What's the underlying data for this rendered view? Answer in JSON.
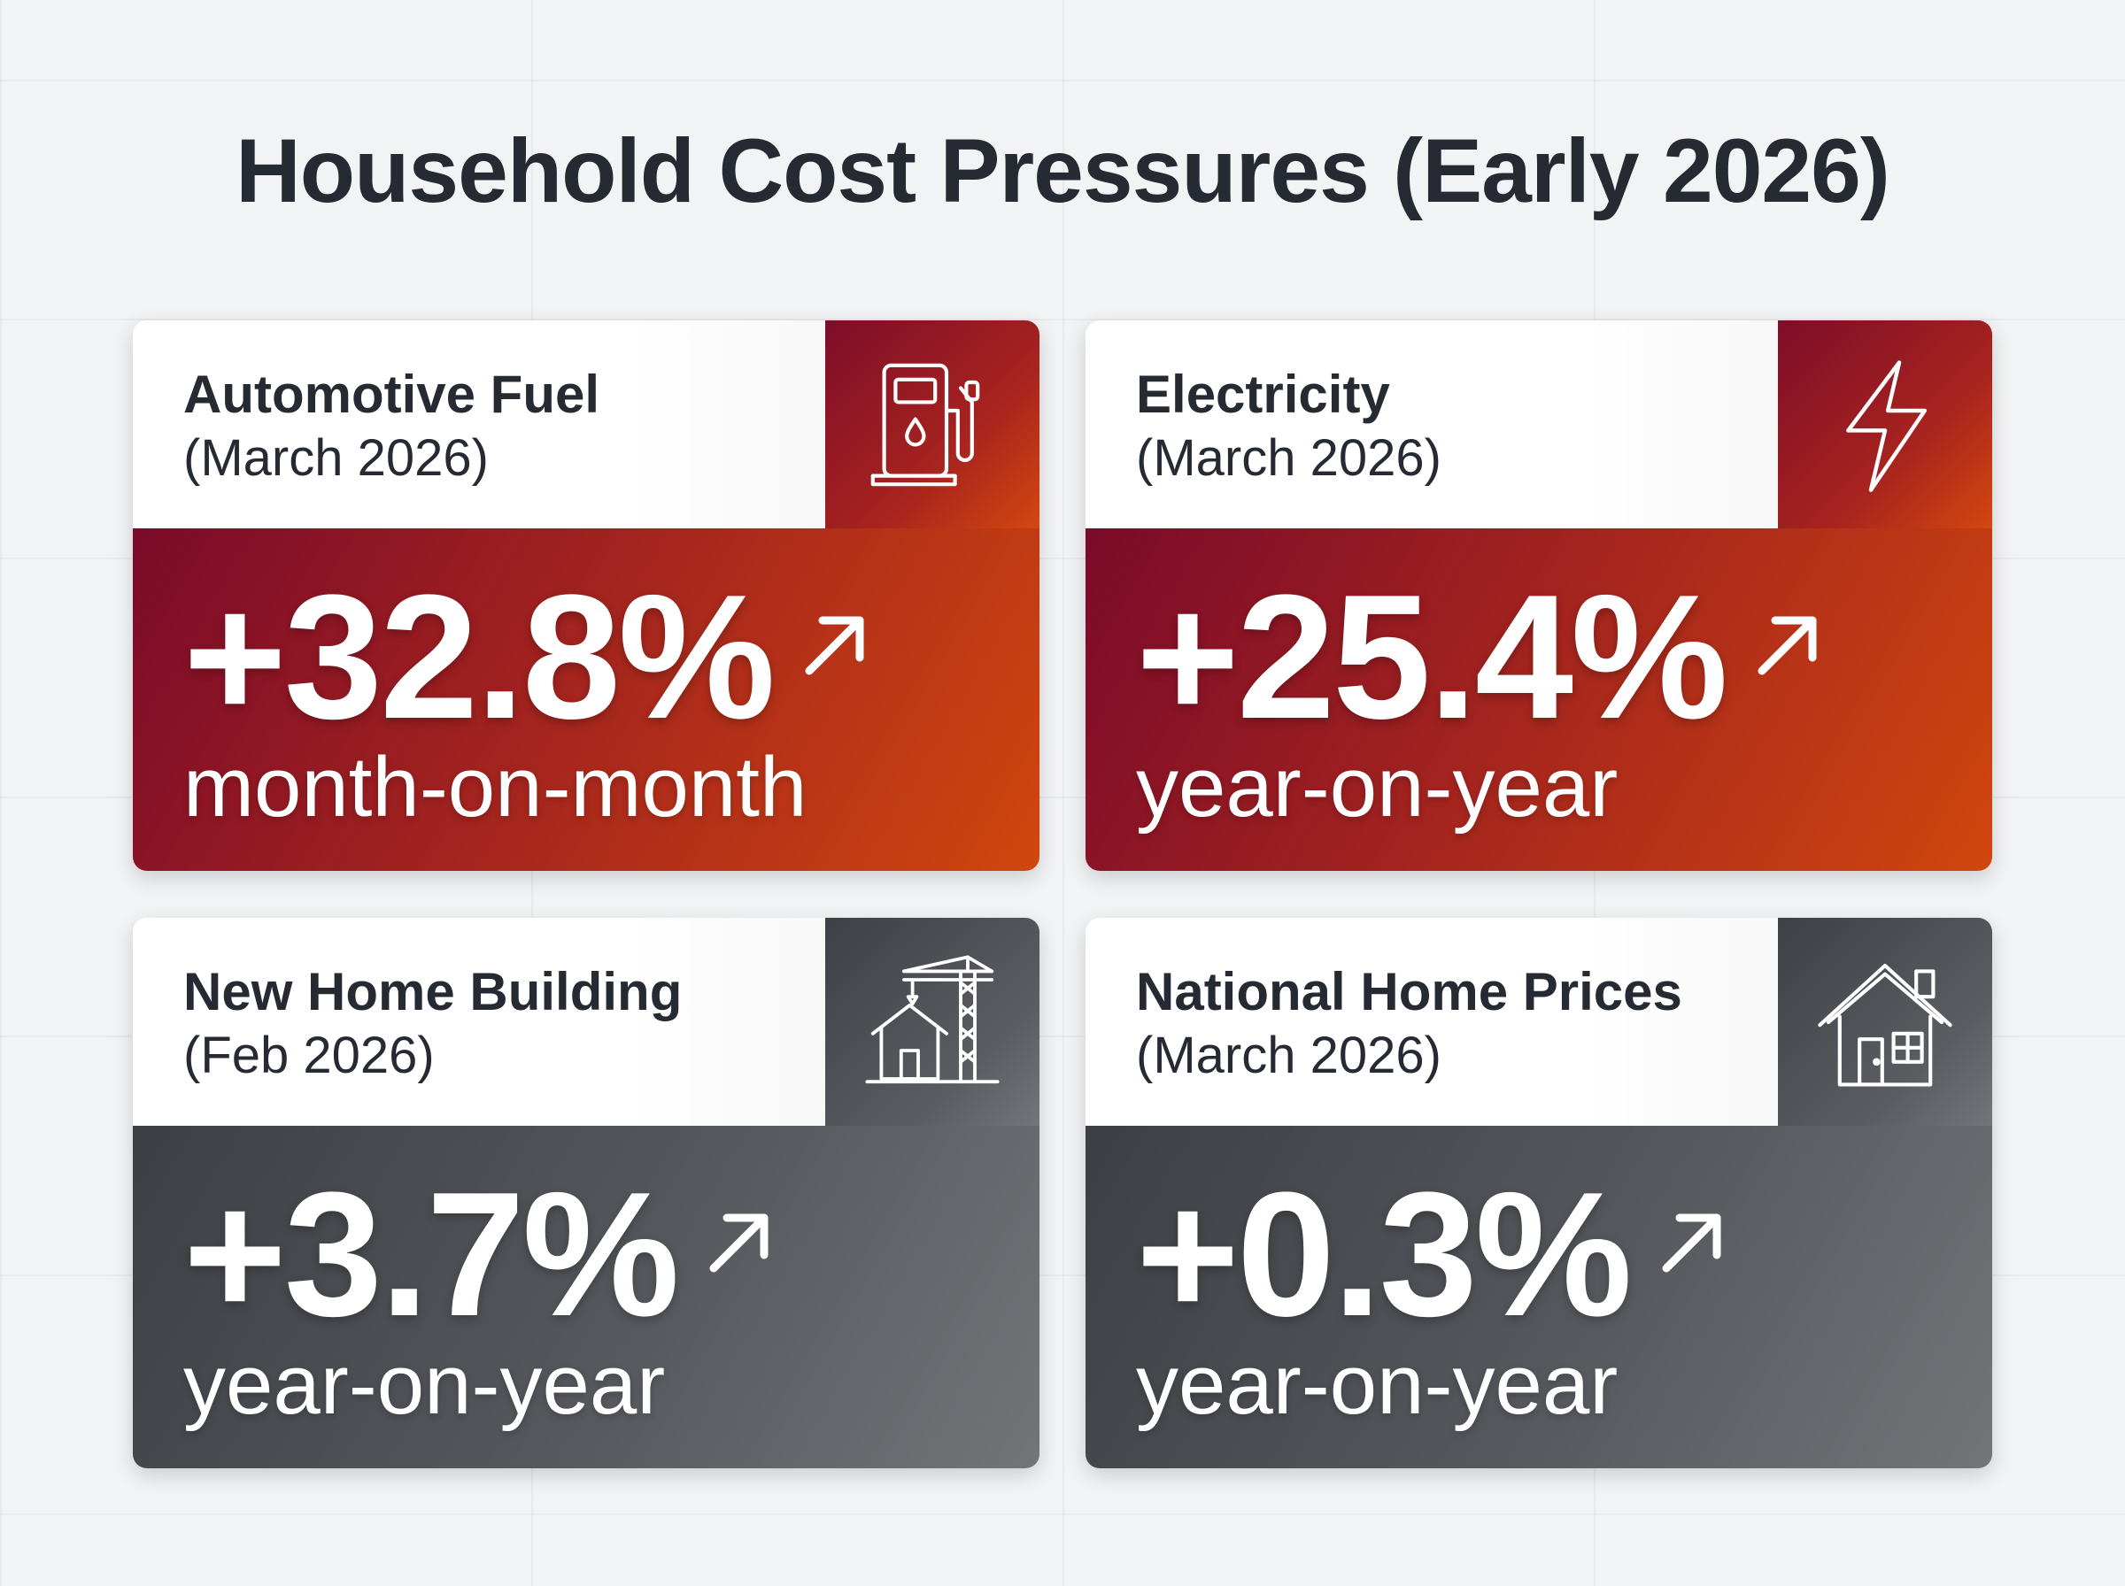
{
  "title": "Household Cost Pressures (Early 2026)",
  "colors": {
    "rising_accent": "#b02a1c",
    "neutral_accent": "#54575c",
    "title_text": "#262b33",
    "background": "#f2f3f5"
  },
  "cards": [
    {
      "name": "Automotive Fuel",
      "period": "(March 2026)",
      "value": "+32.8%",
      "comparison": "month-on-month",
      "icon": "fuel-pump-icon",
      "trend_icon": "arrow-up-right-icon",
      "theme": "red"
    },
    {
      "name": "Electricity",
      "period": "(March 2026)",
      "value": "+25.4%",
      "comparison": "year-on-year",
      "icon": "lightning-bolt-icon",
      "trend_icon": "arrow-up-right-icon",
      "theme": "red"
    },
    {
      "name": "New Home Building",
      "period": "(Feb 2026)",
      "value": "+3.7%",
      "comparison": "year-on-year",
      "icon": "construction-crane-house-icon",
      "trend_icon": "arrow-up-right-icon",
      "theme": "gray"
    },
    {
      "name": "National Home Prices",
      "period": "(March 2026)",
      "value": "+0.3%",
      "comparison": "year-on-year",
      "icon": "house-icon",
      "trend_icon": "arrow-up-right-icon",
      "theme": "gray"
    }
  ]
}
